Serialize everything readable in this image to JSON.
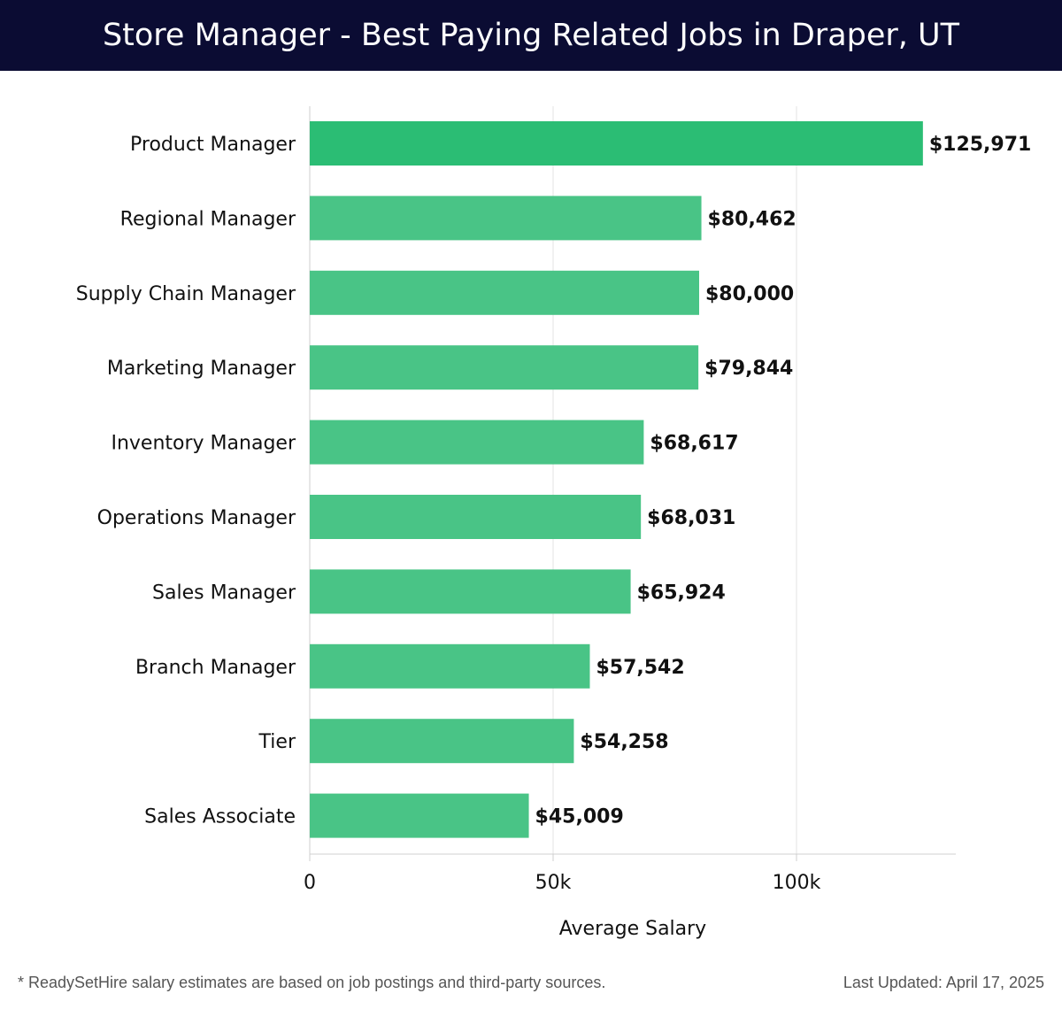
{
  "header": {
    "title": "Store Manager - Best Paying Related Jobs in Draper, UT"
  },
  "footer": {
    "note": "* ReadySetHire salary estimates are based on job postings and third-party sources.",
    "updated": "Last Updated: April 17, 2025"
  },
  "colors": {
    "header_bg": "#0b0c33",
    "top_bar": "#2bbd74",
    "bar": "#49c486",
    "grid": "#e3e3e3"
  },
  "chart_data": {
    "type": "bar",
    "orientation": "horizontal",
    "categories": [
      "Product Manager",
      "Regional Manager",
      "Supply Chain Manager",
      "Marketing Manager",
      "Inventory Manager",
      "Operations Manager",
      "Sales Manager",
      "Branch Manager",
      "Tier",
      "Sales Associate"
    ],
    "values": [
      125971,
      80462,
      80000,
      79844,
      68617,
      68031,
      65924,
      57542,
      54258,
      45009
    ],
    "value_labels": [
      "$125,971",
      "$80,462",
      "$80,000",
      "$79,844",
      "$68,617",
      "$68,031",
      "$65,924",
      "$57,542",
      "$54,258",
      "$45,009"
    ],
    "xlabel": "Average Salary",
    "ylabel": "",
    "xticks": [
      {
        "value": 0,
        "label": "0"
      },
      {
        "value": 50000,
        "label": "50k"
      },
      {
        "value": 100000,
        "label": "100k"
      }
    ],
    "xlim": [
      0,
      132700
    ],
    "grid": true
  }
}
